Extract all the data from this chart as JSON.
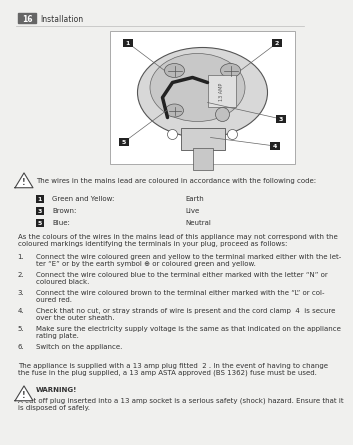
{
  "bg_color": "#f0f0ee",
  "header_bg": "#666666",
  "header_text": "16",
  "header_label": "Installation",
  "header_line_color": "#bbbbbb",
  "numbered_badge_color": "#222222",
  "body_text_color": "#333333",
  "small_font_size": 5.0,
  "wire_table": [
    {
      "badge": "1",
      "label": "Green and Yellow:",
      "value": "Earth"
    },
    {
      "badge": "3",
      "label": "Brown:",
      "value": "Live"
    },
    {
      "badge": "5",
      "label": "Blue:",
      "value": "Neutral"
    }
  ],
  "intro_text": "The wires in the mains lead are coloured in accordance with the following code:",
  "body_paragraph": "As the colours of the wires in the mains lead of this appliance may not correspond with the\ncoloured markings identifying the terminals in your plug, proceed as follows:",
  "steps": [
    "Connect the wire coloured green and yellow to the terminal marked either with the let-\nter “E” or by the earth symbol ⊕ or coloured green and yellow.",
    "Connect the wire coloured blue to the terminal either marked with the letter “N” or\ncoloured black.",
    "Connect the wire coloured brown to the terminal either marked with the “L” or col-\noured red.",
    "Check that no cut, or stray strands of wire is present and the cord clamp  4  is secure\nover the outer sheath.",
    "Make sure the electricity supply voltage is the same as that indicated on the appliance\nrating plate.",
    "Switch on the appliance."
  ],
  "appliance_text": "The appliance is supplied with a 13 amp plug fitted  2 . In the event of having to change\nthe fuse in the plug supplied, a 13 amp ASTA approved (BS 1362) fuse must be used.",
  "warning_title": "WARNING!",
  "warning_text": "A cut off plug inserted into a 13 amp socket is a serious safety (shock) hazard. Ensure that it\nis disposed of safely."
}
